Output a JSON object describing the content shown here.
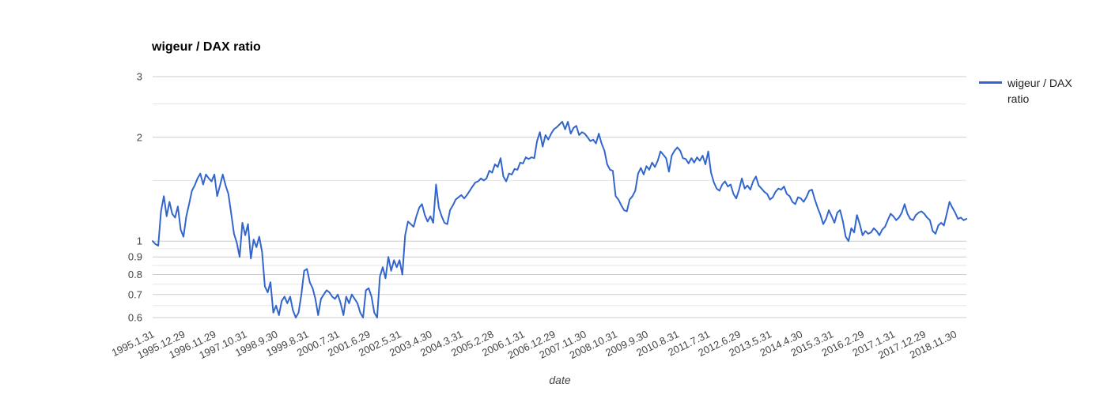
{
  "colors": {
    "background": "#ffffff",
    "line": "#3366cc",
    "grid_major": "#cccccc",
    "grid_minor": "#e6e6e6",
    "axis_text": "#444444",
    "title_text": "#000000",
    "legend_text": "#222222"
  },
  "chart_data": {
    "type": "line",
    "title": "wigeur / DAX ratio",
    "xlabel": "date",
    "ylabel": "",
    "y_scale": "log",
    "ylim": [
      0.6,
      3
    ],
    "grid": true,
    "y_ticks": [
      3,
      2,
      1,
      0.9,
      0.8,
      0.7,
      0.6
    ],
    "y_minor_gridlines": [
      2.5,
      1.5,
      0.95,
      0.85,
      0.75,
      0.65
    ],
    "x_tick_interval_months": 11,
    "x_tick_labels": [
      "1995.1.31",
      "1995.12.29",
      "1996.11.29",
      "1997.10.31",
      "1998.9.30",
      "1999.8.31",
      "2000.7.31",
      "2001.6.29",
      "2002.5.31",
      "2003.4.30",
      "2004.3.31",
      "2005.2.28",
      "2006.1.31",
      "2006.12.29",
      "2007.11.30",
      "2008.10.31",
      "2009.9.30",
      "2010.8.31",
      "2011.7.31",
      "2012.6.29",
      "2013.5.31",
      "2014.4.30",
      "2015.3.31",
      "2016.2.29",
      "2017.1.31",
      "2017.12.29",
      "2018.11.30"
    ],
    "legend": {
      "position": "right",
      "entries": [
        {
          "label": "wigeur / DAX ratio",
          "color": "#3366cc"
        }
      ]
    },
    "series": [
      {
        "name": "wigeur / DAX ratio",
        "color": "#3366cc",
        "start_date": "1995.1.31",
        "frequency": "monthly",
        "values": [
          1.0,
          0.98,
          0.97,
          1.22,
          1.35,
          1.18,
          1.3,
          1.2,
          1.17,
          1.26,
          1.08,
          1.03,
          1.18,
          1.28,
          1.4,
          1.45,
          1.52,
          1.57,
          1.46,
          1.56,
          1.52,
          1.49,
          1.56,
          1.35,
          1.45,
          1.56,
          1.45,
          1.37,
          1.2,
          1.05,
          0.99,
          0.9,
          1.13,
          1.04,
          1.12,
          0.89,
          1.01,
          0.96,
          1.03,
          0.93,
          0.74,
          0.71,
          0.76,
          0.62,
          0.65,
          0.61,
          0.67,
          0.69,
          0.66,
          0.69,
          0.63,
          0.6,
          0.62,
          0.7,
          0.82,
          0.83,
          0.76,
          0.73,
          0.68,
          0.61,
          0.68,
          0.7,
          0.72,
          0.71,
          0.69,
          0.68,
          0.7,
          0.66,
          0.61,
          0.69,
          0.66,
          0.7,
          0.68,
          0.66,
          0.62,
          0.6,
          0.72,
          0.73,
          0.69,
          0.62,
          0.6,
          0.79,
          0.84,
          0.78,
          0.9,
          0.82,
          0.88,
          0.84,
          0.88,
          0.8,
          1.04,
          1.14,
          1.12,
          1.1,
          1.18,
          1.25,
          1.28,
          1.19,
          1.14,
          1.18,
          1.13,
          1.46,
          1.25,
          1.18,
          1.13,
          1.12,
          1.23,
          1.27,
          1.32,
          1.34,
          1.36,
          1.33,
          1.36,
          1.4,
          1.44,
          1.48,
          1.49,
          1.52,
          1.5,
          1.52,
          1.6,
          1.58,
          1.67,
          1.64,
          1.74,
          1.54,
          1.49,
          1.57,
          1.56,
          1.62,
          1.61,
          1.69,
          1.68,
          1.75,
          1.73,
          1.75,
          1.74,
          1.95,
          2.07,
          1.88,
          2.03,
          1.97,
          2.05,
          2.11,
          2.14,
          2.18,
          2.22,
          2.11,
          2.22,
          2.05,
          2.13,
          2.16,
          2.03,
          2.07,
          2.05,
          2.0,
          1.95,
          1.97,
          1.92,
          2.05,
          1.92,
          1.83,
          1.67,
          1.61,
          1.6,
          1.35,
          1.32,
          1.27,
          1.23,
          1.22,
          1.32,
          1.35,
          1.4,
          1.57,
          1.63,
          1.56,
          1.65,
          1.61,
          1.69,
          1.64,
          1.71,
          1.82,
          1.78,
          1.74,
          1.59,
          1.77,
          1.83,
          1.87,
          1.83,
          1.74,
          1.73,
          1.68,
          1.74,
          1.69,
          1.75,
          1.71,
          1.77,
          1.67,
          1.82,
          1.58,
          1.48,
          1.42,
          1.4,
          1.46,
          1.49,
          1.44,
          1.46,
          1.37,
          1.33,
          1.41,
          1.52,
          1.42,
          1.45,
          1.41,
          1.49,
          1.54,
          1.45,
          1.42,
          1.39,
          1.37,
          1.32,
          1.34,
          1.39,
          1.42,
          1.41,
          1.44,
          1.37,
          1.35,
          1.3,
          1.28,
          1.34,
          1.33,
          1.3,
          1.34,
          1.4,
          1.41,
          1.32,
          1.25,
          1.19,
          1.12,
          1.16,
          1.23,
          1.18,
          1.13,
          1.21,
          1.23,
          1.14,
          1.03,
          1.0,
          1.09,
          1.06,
          1.19,
          1.12,
          1.04,
          1.07,
          1.05,
          1.06,
          1.09,
          1.07,
          1.04,
          1.08,
          1.1,
          1.15,
          1.2,
          1.18,
          1.15,
          1.17,
          1.21,
          1.28,
          1.2,
          1.16,
          1.15,
          1.19,
          1.21,
          1.22,
          1.2,
          1.17,
          1.15,
          1.07,
          1.05,
          1.11,
          1.13,
          1.11,
          1.2,
          1.3,
          1.25,
          1.21,
          1.16,
          1.17,
          1.15,
          1.16
        ]
      }
    ]
  }
}
